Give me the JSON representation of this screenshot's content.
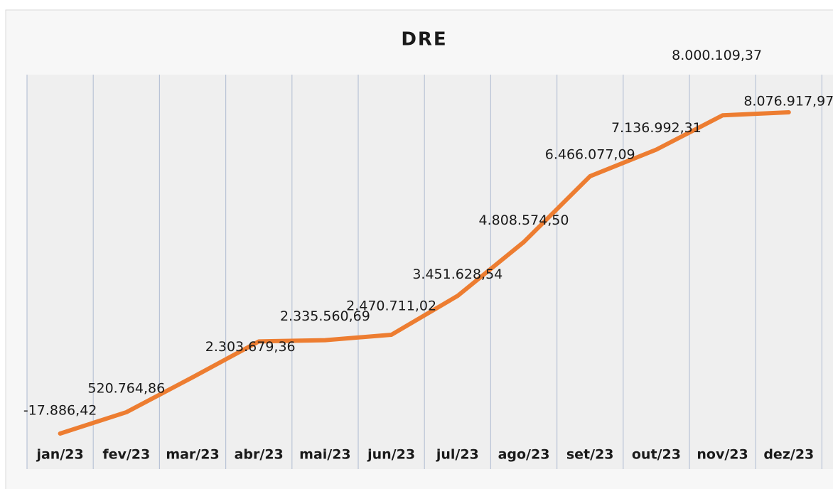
{
  "chart_data": {
    "type": "line",
    "title": "DRE",
    "categories": [
      "jan/23",
      "fev/23",
      "mar/23",
      "abr/23",
      "mai/23",
      "jun/23",
      "jul/23",
      "ago/23",
      "set/23",
      "out/23",
      "nov/23",
      "dez/23"
    ],
    "values": [
      -17886.42,
      520764.86,
      1400000,
      2303679.36,
      2335560.69,
      2470711.02,
      3451628.54,
      4808574.5,
      6466077.09,
      7136992.31,
      8000109.37,
      8076917.97
    ],
    "value_labels": [
      "-17.886,42",
      "520.764,86",
      null,
      "2.303.679,36",
      "2.335.560,69",
      "2.470.711,02",
      "3.451.628,54",
      "4.808.574,50",
      "6.466.077,09",
      "7.136.992,31",
      "8.000.109,37",
      "8.076.917,97"
    ],
    "color": "#ed7d31",
    "grid": true
  }
}
